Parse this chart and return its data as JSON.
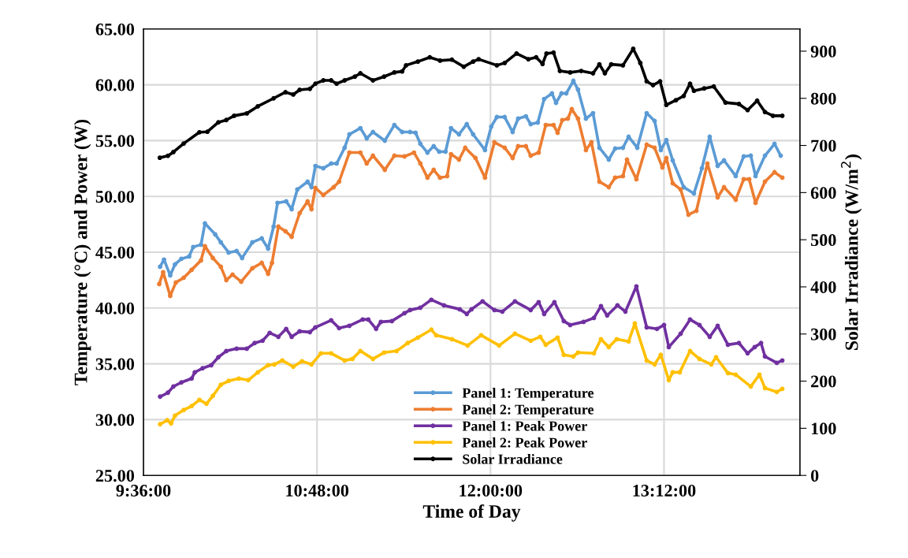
{
  "chart_data": {
    "type": "line",
    "xlabel": "Time of Day",
    "ylabel": "Temperature (°C) and Power (W)",
    "y2label": "Solar Irradiance (W/m$^{2}$)",
    "xlim": [
      9.6,
      14.14
    ],
    "xticks": [
      {
        "value": 9.6,
        "label": "9:36:00"
      },
      {
        "value": 10.8,
        "label": "10:48:00"
      },
      {
        "value": 12.0,
        "label": "12:00:00"
      },
      {
        "value": 13.2,
        "label": "13:12:00"
      }
    ],
    "ylim": [
      25,
      65
    ],
    "yticks": [
      {
        "value": 25,
        "label": "25.00"
      },
      {
        "value": 30,
        "label": "30.00"
      },
      {
        "value": 35,
        "label": "35.00"
      },
      {
        "value": 40,
        "label": "40.00"
      },
      {
        "value": 45,
        "label": "45.00"
      },
      {
        "value": 50,
        "label": "50.00"
      },
      {
        "value": 55,
        "label": "55.00"
      },
      {
        "value": 60,
        "label": "60.00"
      },
      {
        "value": 65,
        "label": "65.00"
      }
    ],
    "y2lim": [
      0,
      947
    ],
    "y2ticks": [
      0,
      100,
      200,
      300,
      400,
      500,
      600,
      700,
      800,
      900
    ],
    "grid": true,
    "legend": "bottom",
    "marker": "circle",
    "series": [
      {
        "name": "Panel 1: Temperature",
        "color": "#5b9bd5",
        "x": [
          9.715,
          9.742,
          9.785,
          9.818,
          9.862,
          9.916,
          9.944,
          9.998,
          10.025,
          10.096,
          10.135,
          10.189,
          10.244,
          10.282,
          10.353,
          10.418,
          10.462,
          10.5,
          10.527,
          10.587,
          10.625,
          10.664,
          10.735,
          10.762,
          10.789,
          10.844,
          10.898,
          10.936,
          10.991,
          11.024,
          11.1,
          11.144,
          11.187,
          11.269,
          11.335,
          11.389,
          11.444,
          11.482,
          11.515,
          11.564,
          11.607,
          11.645,
          11.689,
          11.727,
          11.782,
          11.836,
          11.88,
          11.962,
          12.005,
          12.044,
          12.098,
          12.153,
          12.191,
          12.245,
          12.278,
          12.327,
          12.371,
          12.425,
          12.453,
          12.491,
          12.524,
          12.573,
          12.605,
          12.66,
          12.709,
          12.753,
          12.818,
          12.862,
          12.916,
          12.955,
          13.015,
          13.08,
          13.135,
          13.178,
          13.216,
          13.26,
          13.336,
          13.407,
          13.462,
          13.516,
          13.571,
          13.615,
          13.696,
          13.751,
          13.8,
          13.833,
          13.898,
          13.964,
          14.007
        ],
        "values": [
          43.7,
          44.34,
          42.93,
          43.91,
          44.41,
          44.62,
          45.47,
          45.68,
          47.58,
          46.6,
          45.89,
          44.97,
          45.11,
          44.48,
          45.89,
          46.24,
          45.32,
          47.3,
          49.42,
          49.56,
          48.85,
          50.62,
          51.32,
          50.83,
          52.73,
          52.52,
          52.95,
          52.95,
          54.36,
          55.56,
          56.12,
          55.2,
          55.77,
          54.99,
          56.4,
          55.77,
          55.77,
          55.7,
          54.71,
          53.93,
          54.5,
          54.01,
          54.01,
          56.12,
          55.56,
          56.48,
          55.56,
          54.15,
          56.26,
          57.11,
          57.11,
          55.77,
          56.97,
          57.18,
          56.48,
          56.62,
          58.73,
          59.23,
          58.38,
          59.23,
          59.23,
          60.36,
          59.58,
          56.97,
          57.46,
          54.36,
          53.3,
          54.29,
          54.36,
          55.35,
          54.36,
          57.46,
          56.76,
          54.15,
          55.06,
          53.23,
          50.83,
          50.26,
          52.52,
          55.35,
          52.73,
          53.23,
          51.82,
          53.58,
          53.65,
          51.82,
          53.65,
          54.71,
          53.65
        ]
      },
      {
        "name": "Panel 2: Temperature",
        "color": "#ed7d31",
        "x": [
          9.709,
          9.736,
          9.785,
          9.824,
          9.878,
          9.933,
          9.998,
          10.025,
          10.08,
          10.135,
          10.173,
          10.216,
          10.276,
          10.353,
          10.418,
          10.462,
          10.489,
          10.533,
          10.582,
          10.625,
          10.68,
          10.735,
          10.762,
          10.789,
          10.844,
          10.915,
          10.953,
          11.024,
          11.1,
          11.144,
          11.187,
          11.269,
          11.335,
          11.405,
          11.471,
          11.515,
          11.564,
          11.607,
          11.651,
          11.7,
          11.727,
          11.782,
          11.825,
          11.896,
          11.962,
          12.027,
          12.098,
          12.153,
          12.191,
          12.245,
          12.278,
          12.333,
          12.382,
          12.436,
          12.464,
          12.496,
          12.535,
          12.562,
          12.605,
          12.66,
          12.698,
          12.753,
          12.818,
          12.862,
          12.916,
          12.944,
          13.009,
          13.08,
          13.135,
          13.189,
          13.216,
          13.26,
          13.315,
          13.369,
          13.424,
          13.5,
          13.571,
          13.615,
          13.696,
          13.751,
          13.789,
          13.833,
          13.898,
          13.964,
          14.018
        ],
        "values": [
          42.15,
          43.21,
          41.09,
          42.29,
          42.71,
          43.42,
          44.27,
          45.54,
          44.48,
          43.7,
          42.5,
          43.0,
          42.36,
          43.56,
          44.05,
          43.07,
          44.05,
          47.3,
          46.88,
          46.38,
          48.5,
          49.56,
          48.85,
          50.76,
          50.12,
          50.83,
          51.32,
          53.93,
          53.93,
          52.95,
          53.65,
          52.38,
          53.65,
          53.58,
          53.93,
          52.95,
          51.68,
          52.38,
          51.68,
          51.82,
          53.79,
          53.3,
          54.36,
          53.44,
          51.68,
          54.85,
          54.36,
          53.44,
          54.5,
          54.5,
          53.65,
          53.93,
          56.4,
          56.4,
          55.7,
          56.83,
          56.97,
          57.82,
          56.97,
          54.15,
          54.85,
          51.32,
          50.83,
          51.68,
          51.82,
          53.3,
          51.54,
          54.64,
          54.36,
          52.59,
          53.44,
          51.18,
          50.62,
          48.36,
          48.71,
          52.95,
          49.91,
          50.83,
          49.7,
          51.54,
          51.54,
          49.42,
          51.32,
          52.17,
          51.68
        ]
      },
      {
        "name": "Panel 1: Peak Power",
        "color": "#7030a0",
        "x": [
          9.715,
          9.769,
          9.807,
          9.862,
          9.933,
          9.955,
          10.009,
          10.069,
          10.118,
          10.173,
          10.244,
          10.315,
          10.369,
          10.424,
          10.473,
          10.533,
          10.587,
          10.625,
          10.68,
          10.751,
          10.789,
          10.898,
          10.953,
          11.024,
          11.116,
          11.155,
          11.209,
          11.242,
          11.318,
          11.405,
          11.444,
          11.515,
          11.591,
          11.678,
          11.787,
          11.836,
          11.869,
          11.945,
          12.027,
          12.082,
          12.169,
          12.278,
          12.333,
          12.371,
          12.442,
          12.507,
          12.551,
          12.644,
          12.715,
          12.764,
          12.807,
          12.878,
          12.933,
          13.009,
          13.08,
          13.151,
          13.2,
          13.233,
          13.315,
          13.38,
          13.445,
          13.516,
          13.571,
          13.642,
          13.718,
          13.778,
          13.827,
          13.871,
          13.898,
          13.98,
          14.018
        ],
        "values": [
          32.06,
          32.41,
          32.97,
          33.33,
          33.68,
          34.24,
          34.6,
          34.88,
          35.59,
          36.15,
          36.36,
          36.36,
          36.86,
          37.07,
          37.77,
          37.42,
          38.13,
          37.42,
          37.91,
          37.84,
          38.27,
          38.9,
          38.2,
          38.41,
          38.97,
          38.97,
          38.13,
          38.76,
          38.83,
          39.54,
          39.82,
          40.03,
          40.74,
          40.24,
          39.89,
          39.47,
          39.89,
          40.6,
          39.82,
          39.68,
          40.6,
          39.82,
          40.53,
          39.47,
          40.53,
          38.83,
          38.48,
          38.76,
          39.11,
          40.17,
          39.33,
          40.24,
          39.68,
          41.94,
          38.27,
          38.13,
          38.48,
          36.5,
          37.7,
          38.97,
          38.48,
          37.42,
          38.41,
          36.71,
          36.86,
          35.94,
          36.5,
          36.86,
          35.66,
          35.09,
          35.3
        ]
      },
      {
        "name": "Panel 2: Peak Power",
        "color": "#ffc000",
        "x": [
          9.715,
          9.764,
          9.791,
          9.818,
          9.878,
          9.933,
          9.987,
          10.036,
          10.08,
          10.135,
          10.189,
          10.26,
          10.325,
          10.391,
          10.462,
          10.505,
          10.56,
          10.636,
          10.696,
          10.762,
          10.827,
          10.898,
          10.991,
          11.045,
          11.1,
          11.187,
          11.264,
          11.351,
          11.427,
          11.498,
          11.591,
          11.624,
          11.733,
          11.842,
          11.935,
          12.06,
          12.169,
          12.278,
          12.344,
          12.382,
          12.464,
          12.507,
          12.573,
          12.605,
          12.715,
          12.764,
          12.818,
          12.873,
          12.955,
          12.998,
          13.08,
          13.135,
          13.178,
          13.233,
          13.26,
          13.309,
          13.38,
          13.445,
          13.527,
          13.56,
          13.642,
          13.696,
          13.8,
          13.86,
          13.898,
          13.98,
          14.018
        ],
        "values": [
          29.59,
          29.94,
          29.66,
          30.36,
          30.86,
          31.21,
          31.77,
          31.42,
          32.13,
          33.12,
          33.47,
          33.68,
          33.54,
          34.24,
          34.88,
          34.95,
          35.3,
          34.74,
          35.23,
          34.95,
          35.94,
          35.94,
          35.3,
          35.44,
          36.15,
          35.44,
          36.01,
          36.15,
          36.86,
          37.35,
          38.06,
          37.56,
          37.21,
          36.64,
          37.56,
          36.64,
          37.7,
          37.07,
          37.42,
          36.71,
          37.35,
          35.8,
          35.66,
          36.01,
          35.94,
          37.21,
          36.5,
          37.21,
          37.0,
          38.62,
          35.3,
          34.95,
          35.8,
          33.54,
          34.24,
          34.24,
          36.15,
          35.44,
          34.95,
          35.59,
          34.17,
          34.03,
          32.97,
          34.03,
          32.83,
          32.48,
          32.76
        ]
      },
      {
        "name": "Solar Irradiance",
        "color": "#000000",
        "axis": "y2",
        "x": [
          9.713,
          9.769,
          9.807,
          9.878,
          9.987,
          10.042,
          10.118,
          10.173,
          10.227,
          10.315,
          10.391,
          10.5,
          10.582,
          10.636,
          10.68,
          10.751,
          10.789,
          10.844,
          10.898,
          10.936,
          10.991,
          11.062,
          11.1,
          11.187,
          11.264,
          11.335,
          11.389,
          11.416,
          11.498,
          11.58,
          11.651,
          11.733,
          11.815,
          11.88,
          11.918,
          12.044,
          12.098,
          12.18,
          12.262,
          12.316,
          12.36,
          12.387,
          12.436,
          12.48,
          12.551,
          12.627,
          12.709,
          12.753,
          12.791,
          12.835,
          12.916,
          12.987,
          13.036,
          13.08,
          13.124,
          13.173,
          13.216,
          13.282,
          13.336,
          13.38,
          13.407,
          13.478,
          13.544,
          13.625,
          13.718,
          13.778,
          13.844,
          13.898,
          13.953,
          14.018
        ],
        "values": [
          674,
          678,
          686,
          704,
          728,
          729,
          749,
          754,
          763,
          768,
          783,
          800,
          813,
          808,
          818,
          820,
          831,
          838,
          838,
          831,
          838,
          846,
          853,
          838,
          846,
          855,
          857,
          870,
          878,
          887,
          880,
          882,
          867,
          878,
          883,
          870,
          875,
          895,
          883,
          887,
          873,
          895,
          897,
          858,
          855,
          858,
          853,
          872,
          853,
          872,
          870,
          905,
          875,
          836,
          828,
          836,
          786,
          796,
          805,
          831,
          816,
          821,
          825,
          791,
          788,
          775,
          795,
          771,
          763,
          763
        ]
      }
    ]
  }
}
